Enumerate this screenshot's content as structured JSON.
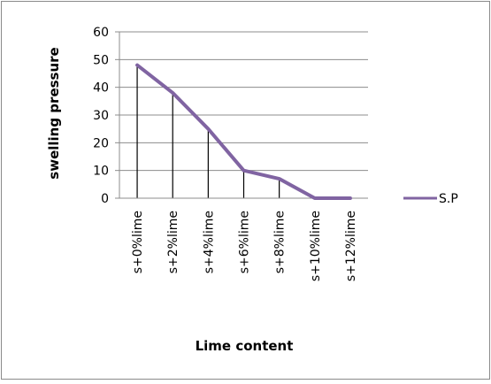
{
  "chart_data": {
    "type": "line",
    "categories": [
      "s+0%lime",
      "s+2%lime",
      "s+4%lime",
      "s+6%lime",
      "s+8%lime",
      "s+10%lime",
      "s+12%lime"
    ],
    "series": [
      {
        "name": "S.P",
        "values": [
          48,
          38,
          25,
          10,
          7,
          0,
          0
        ],
        "color": "#8064A2"
      }
    ],
    "xlabel": "Lime content",
    "ylabel": "swelling pressure",
    "ylim": [
      0,
      60
    ],
    "yticks": [
      0,
      10,
      20,
      30,
      40,
      50,
      60
    ],
    "grid": true,
    "drop_lines": true,
    "legend_position": "right"
  }
}
